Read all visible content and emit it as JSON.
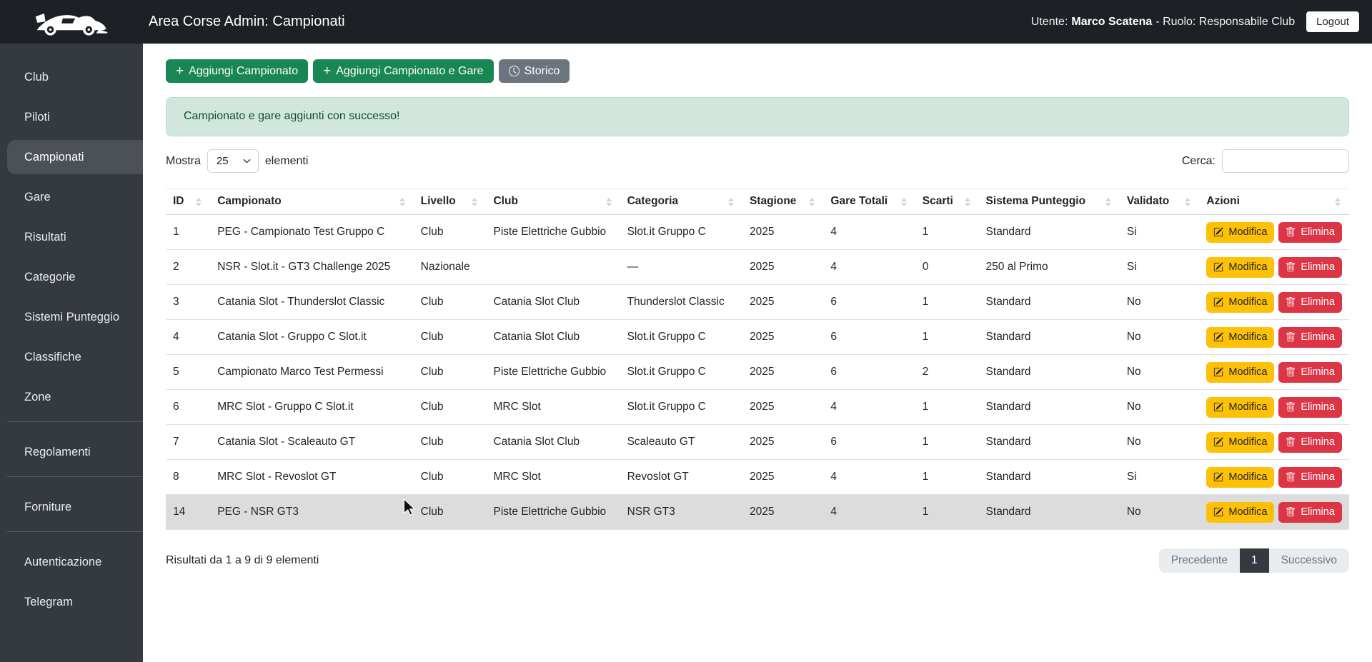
{
  "navbar": {
    "title": "Area Corse Admin: Campionati",
    "user_label": "Utente:",
    "user_name": "Marco Scatena",
    "role_label": "- Ruolo: Responsabile Club",
    "logout_label": "Logout",
    "logo": "race-car-logo"
  },
  "sidebar": {
    "items": [
      {
        "label": "Club",
        "active": false
      },
      {
        "label": "Piloti",
        "active": false
      },
      {
        "label": "Campionati",
        "active": true
      },
      {
        "label": "Gare",
        "active": false
      },
      {
        "label": "Risultati",
        "active": false
      },
      {
        "label": "Categorie",
        "active": false
      },
      {
        "label": "Sistemi Punteggio",
        "active": false
      },
      {
        "label": "Classifiche",
        "active": false
      },
      {
        "label": "Zone",
        "active": false
      },
      {
        "label": "Regolamenti",
        "active": false,
        "divider_before": true
      },
      {
        "label": "Forniture",
        "active": false,
        "divider_before": true
      },
      {
        "label": "Autenticazione",
        "active": false,
        "divider_before": true
      },
      {
        "label": "Telegram",
        "active": false
      }
    ]
  },
  "toolbar": {
    "add_championship_label": "Aggiungi Campionato",
    "add_championship_icon": "plus",
    "add_championship_races_label": "Aggiungi Campionato e Gare",
    "add_championship_races_icon": "plus",
    "history_label": "Storico",
    "history_icon": "clock"
  },
  "alert": {
    "message": "Campionato e gare aggiunti con successo!"
  },
  "table_controls": {
    "show_label": "Mostra",
    "page_length": "25",
    "elements_label": "elementi",
    "search_label": "Cerca:",
    "search_value": ""
  },
  "table": {
    "columns": [
      "ID",
      "Campionato",
      "Livello",
      "Club",
      "Categoria",
      "Stagione",
      "Gare Totali",
      "Scarti",
      "Sistema Punteggio",
      "Validato",
      "Azioni"
    ],
    "rows": [
      {
        "id": "1",
        "campionato": "PEG - Campionato Test Gruppo C",
        "livello": "Club",
        "club": "Piste Elettriche Gubbio",
        "categoria": "Slot.it Gruppo C",
        "stagione": "2025",
        "gare_totali": "4",
        "scarti": "1",
        "sistema_punteggio": "Standard",
        "validato": "Si",
        "highlighted": false
      },
      {
        "id": "2",
        "campionato": "NSR - Slot.it - GT3 Challenge 2025",
        "livello": "Nazionale",
        "club": "",
        "categoria": "—",
        "stagione": "2025",
        "gare_totali": "4",
        "scarti": "0",
        "sistema_punteggio": "250 al Primo",
        "validato": "Si",
        "highlighted": false
      },
      {
        "id": "3",
        "campionato": "Catania Slot - Thunderslot Classic",
        "livello": "Club",
        "club": "Catania Slot Club",
        "categoria": "Thunderslot Classic",
        "stagione": "2025",
        "gare_totali": "6",
        "scarti": "1",
        "sistema_punteggio": "Standard",
        "validato": "No",
        "highlighted": false
      },
      {
        "id": "4",
        "campionato": "Catania Slot - Gruppo C Slot.it",
        "livello": "Club",
        "club": "Catania Slot Club",
        "categoria": "Slot.it Gruppo C",
        "stagione": "2025",
        "gare_totali": "6",
        "scarti": "1",
        "sistema_punteggio": "Standard",
        "validato": "No",
        "highlighted": false
      },
      {
        "id": "5",
        "campionato": "Campionato Marco Test Permessi",
        "livello": "Club",
        "club": "Piste Elettriche Gubbio",
        "categoria": "Slot.it Gruppo C",
        "stagione": "2025",
        "gare_totali": "6",
        "scarti": "2",
        "sistema_punteggio": "Standard",
        "validato": "No",
        "highlighted": false
      },
      {
        "id": "6",
        "campionato": "MRC Slot - Gruppo C Slot.it",
        "livello": "Club",
        "club": "MRC Slot",
        "categoria": "Slot.it Gruppo C",
        "stagione": "2025",
        "gare_totali": "4",
        "scarti": "1",
        "sistema_punteggio": "Standard",
        "validato": "No",
        "highlighted": false
      },
      {
        "id": "7",
        "campionato": "Catania Slot - Scaleauto GT",
        "livello": "Club",
        "club": "Catania Slot Club",
        "categoria": "Scaleauto GT",
        "stagione": "2025",
        "gare_totali": "6",
        "scarti": "1",
        "sistema_punteggio": "Standard",
        "validato": "No",
        "highlighted": false
      },
      {
        "id": "8",
        "campionato": "MRC Slot - Revoslot GT",
        "livello": "Club",
        "club": "MRC Slot",
        "categoria": "Revoslot GT",
        "stagione": "2025",
        "gare_totali": "4",
        "scarti": "1",
        "sistema_punteggio": "Standard",
        "validato": "Si",
        "highlighted": false
      },
      {
        "id": "14",
        "campionato": "PEG - NSR GT3",
        "livello": "Club",
        "club": "Piste Elettriche Gubbio",
        "categoria": "NSR GT3",
        "stagione": "2025",
        "gare_totali": "4",
        "scarti": "1",
        "sistema_punteggio": "Standard",
        "validato": "No",
        "highlighted": true
      }
    ],
    "actions": {
      "edit_label": "Modifica",
      "edit_icon": "pencil-square",
      "delete_label": "Elimina",
      "delete_icon": "trash"
    }
  },
  "footer": {
    "results_text": "Risultati da 1 a 9 di 9 elementi",
    "pagination": {
      "previous_label": "Precedente",
      "current_page": "1",
      "next_label": "Successivo"
    }
  },
  "colors": {
    "navbar_bg": "#1d2125",
    "sidebar_bg": "#343a40",
    "sidebar_active_bg": "#4b5157",
    "success": "#198754",
    "secondary": "#6c757d",
    "warning": "#ffc107",
    "danger": "#dc3545",
    "alert_bg": "#d1e7dd",
    "alert_text": "#0f5132",
    "pagination_active": "#343a40",
    "row_highlight": "#dcdcdc"
  }
}
